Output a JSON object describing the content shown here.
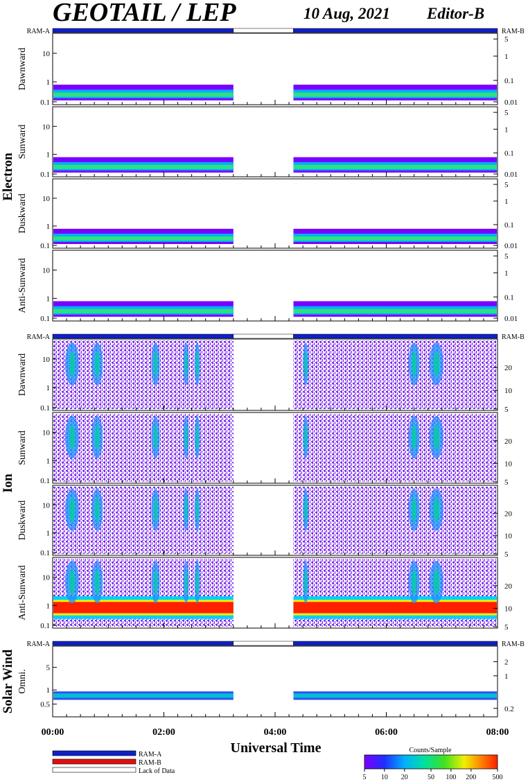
{
  "header": {
    "title": "GEOTAIL / LEP",
    "date": "10 Aug, 2021",
    "editor": "Editor-B"
  },
  "ram_labels": {
    "a": "RAM-A",
    "b": "RAM-B"
  },
  "groups": {
    "electron": "Electron",
    "ion": "Ion",
    "solar_wind": "Solar Wind"
  },
  "x_axis": {
    "label": "Universal Time",
    "ticks": [
      "00:00",
      "02:00",
      "04:00",
      "06:00",
      "08:00"
    ]
  },
  "legend": {
    "items": [
      {
        "label": "RAM-A",
        "color": "#1020c8"
      },
      {
        "label": "RAM-B",
        "color": "#e01010"
      },
      {
        "label": "Lack of Data",
        "color": "#ffffff"
      }
    ]
  },
  "colorbar": {
    "title": "Counts/Sample",
    "ticks": [
      "5",
      "10",
      "20",
      "50",
      "100",
      "200",
      "500"
    ],
    "colors": [
      "#7a00ff",
      "#2030ff",
      "#00b0ff",
      "#00e0a0",
      "#40e020",
      "#f0f000",
      "#ff8000",
      "#ff2000"
    ]
  },
  "chart_data": {
    "type": "heatmap",
    "x_range_hours": [
      0,
      8
    ],
    "data_gap_hours": [
      3.25,
      4.33
    ],
    "panels": [
      {
        "group": "Electron",
        "label": "Dawnward",
        "left_ticks": [
          "10",
          "1",
          "0.1"
        ],
        "right_ticks": [
          "5",
          "1",
          "0.1",
          "0.01"
        ]
      },
      {
        "group": "Electron",
        "label": "Sunward",
        "left_ticks": [
          "10",
          "1",
          "0.1"
        ],
        "right_ticks": [
          "5",
          "1",
          "0.1",
          "0.01"
        ]
      },
      {
        "group": "Electron",
        "label": "Duskward",
        "left_ticks": [
          "10",
          "1",
          "0.1"
        ],
        "right_ticks": [
          "5",
          "1",
          "0.1",
          "0.01"
        ]
      },
      {
        "group": "Electron",
        "label": "Anti-Sunward",
        "left_ticks": [
          "10",
          "1",
          "0.1"
        ],
        "right_ticks": [
          "5",
          "1",
          "0.1",
          "0.01"
        ]
      },
      {
        "group": "Ion",
        "label": "Dawnward",
        "left_ticks": [
          "10",
          "1",
          "0.1"
        ],
        "right_ticks": [
          "20",
          "10",
          "5"
        ]
      },
      {
        "group": "Ion",
        "label": "Sunward",
        "left_ticks": [
          "10",
          "1",
          "0.1"
        ],
        "right_ticks": [
          "20",
          "10",
          "5"
        ]
      },
      {
        "group": "Ion",
        "label": "Duskward",
        "left_ticks": [
          "10",
          "1",
          "0.1"
        ],
        "right_ticks": [
          "20",
          "10",
          "5"
        ]
      },
      {
        "group": "Ion",
        "label": "Anti-Sunward",
        "left_ticks": [
          "10",
          "1",
          "0.1"
        ],
        "right_ticks": [
          "20",
          "10",
          "5"
        ]
      },
      {
        "group": "Solar Wind",
        "label": "Omni.",
        "left_ticks": [
          "5",
          "1",
          "0.5"
        ],
        "right_ticks": [
          "2",
          "1",
          "0.2"
        ]
      }
    ]
  }
}
